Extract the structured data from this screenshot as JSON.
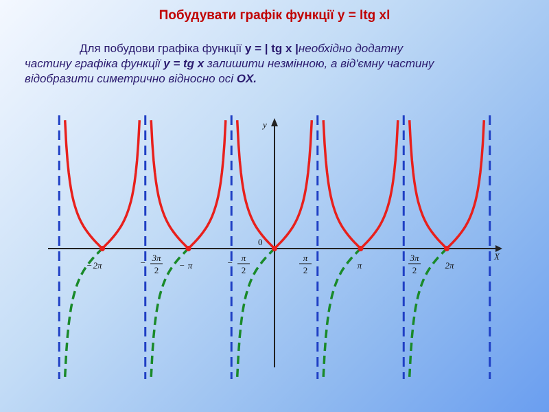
{
  "title": "Побудувати графік функції y = ltg xl",
  "paragraph": [
    {
      "text": "Для побудови графіка функції ",
      "style": "normal"
    },
    {
      "text": "y = | tg x |",
      "style": "bold"
    },
    {
      "text": "необхідно додатну",
      "style": "italic"
    },
    {
      "text": "частину графіка функції ",
      "style": "italic"
    },
    {
      "text": "y = tg x",
      "style": "bold-italic"
    },
    {
      "text": "  залишити незмінною, а від'ємну частину",
      "style": "italic"
    },
    {
      "text": "відобразити симетрично відносно осі ",
      "style": "italic"
    },
    {
      "text": "OX.",
      "style": "bold-italic"
    }
  ],
  "axes": {
    "y_label": "y",
    "x_label": "X",
    "origin_label": "0"
  },
  "ticks": [
    {
      "sign": "−",
      "num": "2π"
    },
    {
      "sign": "−",
      "num": "3π",
      "den": "2"
    },
    {
      "sign": "−",
      "num": "π"
    },
    {
      "sign": "−",
      "num": "π",
      "den": "2"
    },
    {
      "num": "π",
      "den": "2"
    },
    {
      "num": "π"
    },
    {
      "num": "3π",
      "den": "2"
    },
    {
      "num": "2π"
    }
  ]
}
